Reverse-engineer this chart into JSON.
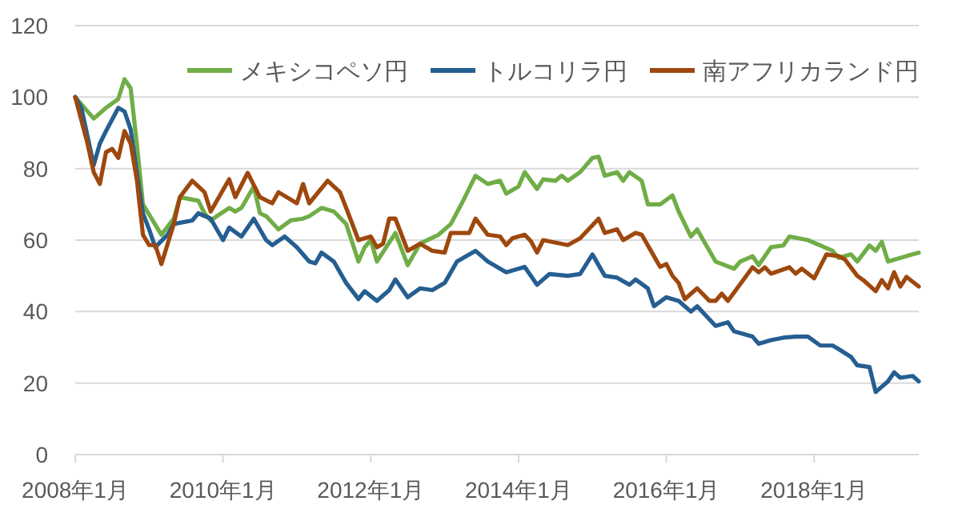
{
  "chart_data": {
    "type": "line",
    "xlim": [
      "2008-01",
      "2019-06"
    ],
    "ylim": [
      0,
      120
    ],
    "yticks": [
      0,
      20,
      40,
      60,
      80,
      100,
      120
    ],
    "xticks": [
      {
        "value": "2008-01",
        "label": "2008年1月"
      },
      {
        "value": "2010-01",
        "label": "2010年1月"
      },
      {
        "value": "2012-01",
        "label": "2012年1月"
      },
      {
        "value": "2014-01",
        "label": "2014年1月"
      },
      {
        "value": "2016-01",
        "label": "2016年1月"
      },
      {
        "value": "2018-01",
        "label": "2018年1月"
      }
    ],
    "grid": "y",
    "legend": "top right",
    "line_style": "solid",
    "series": [
      {
        "name": "メキシコペソ円",
        "color": "#70ad47",
        "x": [
          "2008-01",
          "2008-04",
          "2008-06",
          "2008-08",
          "2008-09",
          "2008-10",
          "2008-11",
          "2008-12",
          "2009-03",
          "2009-05",
          "2009-06",
          "2009-09",
          "2009-10",
          "2009-11",
          "2009-12",
          "2010-02",
          "2010-03",
          "2010-04",
          "2010-06",
          "2010-07",
          "2010-08",
          "2010-10",
          "2010-12",
          "2011-02",
          "2011-03",
          "2011-05",
          "2011-07",
          "2011-09",
          "2011-11",
          "2011-12",
          "2012-01",
          "2012-02",
          "2012-05",
          "2012-07",
          "2012-09",
          "2012-12",
          "2013-02",
          "2013-04",
          "2013-06",
          "2013-08",
          "2013-10",
          "2013-11",
          "2014-01",
          "2014-02",
          "2014-04",
          "2014-05",
          "2014-07",
          "2014-08",
          "2014-09",
          "2014-11",
          "2015-01",
          "2015-02",
          "2015-03",
          "2015-05",
          "2015-06",
          "2015-07",
          "2015-09",
          "2015-10",
          "2015-12",
          "2016-02",
          "2016-03",
          "2016-05",
          "2016-06",
          "2016-09",
          "2016-12",
          "2017-01",
          "2017-03",
          "2017-04",
          "2017-06",
          "2017-08",
          "2017-09",
          "2017-12",
          "2018-02",
          "2018-04",
          "2018-05",
          "2018-07",
          "2018-08",
          "2018-10",
          "2018-11",
          "2018-12",
          "2019-01",
          "2019-03",
          "2019-05",
          "2019-06"
        ],
        "values": [
          100,
          94,
          97,
          99.5,
          105,
          102.5,
          87,
          70,
          61.5,
          66,
          72,
          71,
          67.5,
          65.5,
          66.7,
          69,
          68,
          69,
          75,
          67.5,
          66.7,
          63,
          65.5,
          66,
          66.7,
          69,
          68,
          64.5,
          54,
          58,
          60,
          54,
          62,
          53,
          59,
          61.5,
          64.5,
          71,
          78,
          75.7,
          76.6,
          73,
          75,
          79,
          74.3,
          77,
          76.6,
          78,
          76.6,
          79,
          83,
          83.3,
          78,
          79,
          76.6,
          79,
          76.6,
          70,
          70,
          72.5,
          68,
          61,
          63,
          54,
          52,
          54,
          55.5,
          53,
          58,
          58.5,
          61,
          60,
          58.5,
          57,
          55,
          56,
          54,
          58.5,
          57,
          59.5,
          54,
          55,
          56,
          56.5
        ]
      },
      {
        "name": "トルコリラ円",
        "color": "#255e91",
        "x": [
          "2008-01",
          "2008-02",
          "2008-04",
          "2008-05",
          "2008-06",
          "2008-08",
          "2008-09",
          "2008-10",
          "2008-11",
          "2008-12",
          "2009-01",
          "2009-02",
          "2009-04",
          "2009-05",
          "2009-08",
          "2009-09",
          "2009-11",
          "2010-01",
          "2010-02",
          "2010-04",
          "2010-06",
          "2010-08",
          "2010-09",
          "2010-11",
          "2011-01",
          "2011-03",
          "2011-04",
          "2011-05",
          "2011-07",
          "2011-08",
          "2011-09",
          "2011-11",
          "2011-12",
          "2012-02",
          "2012-04",
          "2012-05",
          "2012-07",
          "2012-09",
          "2012-11",
          "2013-01",
          "2013-03",
          "2013-06",
          "2013-08",
          "2013-10",
          "2013-11",
          "2014-02",
          "2014-04",
          "2014-06",
          "2014-09",
          "2014-11",
          "2015-01",
          "2015-03",
          "2015-05",
          "2015-07",
          "2015-08",
          "2015-10",
          "2015-11",
          "2016-01",
          "2016-03",
          "2016-05",
          "2016-06",
          "2016-09",
          "2016-11",
          "2016-12",
          "2017-03",
          "2017-04",
          "2017-06",
          "2017-08",
          "2017-10",
          "2017-12",
          "2018-02",
          "2018-04",
          "2018-05",
          "2018-07",
          "2018-08",
          "2018-10",
          "2018-11",
          "2019-01",
          "2019-02",
          "2019-03",
          "2019-05",
          "2019-06"
        ],
        "values": [
          100,
          97,
          81,
          87,
          90.5,
          97,
          96,
          91,
          79,
          67.5,
          63,
          58,
          61.5,
          64.5,
          65.5,
          67.5,
          66,
          60,
          63.5,
          61,
          66,
          60,
          58.6,
          61,
          58,
          54,
          53.5,
          56.5,
          54,
          51,
          48,
          43.5,
          45.7,
          43,
          46,
          49,
          44,
          46.5,
          46,
          48,
          54,
          57,
          54,
          52,
          51,
          52.5,
          47.5,
          50.5,
          50,
          50.5,
          56,
          50,
          49.5,
          47.5,
          49,
          46.5,
          41.5,
          44,
          43,
          40,
          41.5,
          36,
          37,
          34.5,
          33,
          31,
          32,
          32.7,
          33,
          33,
          30.5,
          30.5,
          29.5,
          27.3,
          25,
          24.5,
          17.5,
          20.5,
          23,
          21.5,
          22,
          20.5
        ]
      },
      {
        "name": "南アフリカランド円",
        "color": "#9e480e",
        "x": [
          "2008-01",
          "2008-03",
          "2008-04",
          "2008-05",
          "2008-06",
          "2008-07",
          "2008-08",
          "2008-09",
          "2008-10",
          "2008-11",
          "2008-12",
          "2009-01",
          "2009-02",
          "2009-03",
          "2009-05",
          "2009-06",
          "2009-08",
          "2009-10",
          "2009-11",
          "2010-02",
          "2010-03",
          "2010-05",
          "2010-07",
          "2010-09",
          "2010-10",
          "2011-01",
          "2011-02",
          "2011-03",
          "2011-06",
          "2011-08",
          "2011-09",
          "2011-11",
          "2012-01",
          "2012-02",
          "2012-03",
          "2012-04",
          "2012-05",
          "2012-07",
          "2012-09",
          "2012-11",
          "2013-01",
          "2013-02",
          "2013-05",
          "2013-06",
          "2013-08",
          "2013-10",
          "2013-11",
          "2013-12",
          "2014-02",
          "2014-03",
          "2014-04",
          "2014-05",
          "2014-09",
          "2014-11",
          "2015-02",
          "2015-03",
          "2015-05",
          "2015-06",
          "2015-08",
          "2015-09",
          "2015-11",
          "2015-12",
          "2016-01",
          "2016-02",
          "2016-03",
          "2016-04",
          "2016-06",
          "2016-08",
          "2016-09",
          "2016-10",
          "2016-11",
          "2017-03",
          "2017-04",
          "2017-05",
          "2017-06",
          "2017-09",
          "2017-10",
          "2017-11",
          "2018-01",
          "2018-03",
          "2018-05",
          "2018-06",
          "2018-08",
          "2018-09",
          "2018-11",
          "2018-12",
          "2019-01",
          "2019-02",
          "2019-03",
          "2019-04",
          "2019-06"
        ],
        "values": [
          100,
          87,
          79,
          75.7,
          84.6,
          85.5,
          83,
          90.5,
          87,
          77,
          61.5,
          58.6,
          58.6,
          53.3,
          64.5,
          72,
          76.6,
          73.4,
          68,
          77,
          72,
          78.8,
          72,
          70.3,
          73.4,
          70.3,
          75.7,
          70.3,
          76.6,
          73.4,
          69,
          60,
          61,
          58,
          59,
          66,
          66,
          57,
          59,
          57,
          56.5,
          62,
          62,
          66,
          61.5,
          61,
          58.6,
          60.5,
          61.5,
          59.7,
          56.5,
          60,
          58.6,
          60.5,
          66,
          62,
          63,
          60,
          62,
          61.5,
          55.5,
          52.5,
          53.3,
          50,
          48,
          43.5,
          46.5,
          43,
          43,
          45,
          43,
          52.4,
          51,
          52.4,
          50.6,
          52.4,
          50.6,
          52,
          49.3,
          56,
          55.5,
          54.6,
          50,
          48.8,
          45.7,
          48.8,
          46.5,
          51,
          47,
          49.7,
          47
        ]
      }
    ]
  }
}
